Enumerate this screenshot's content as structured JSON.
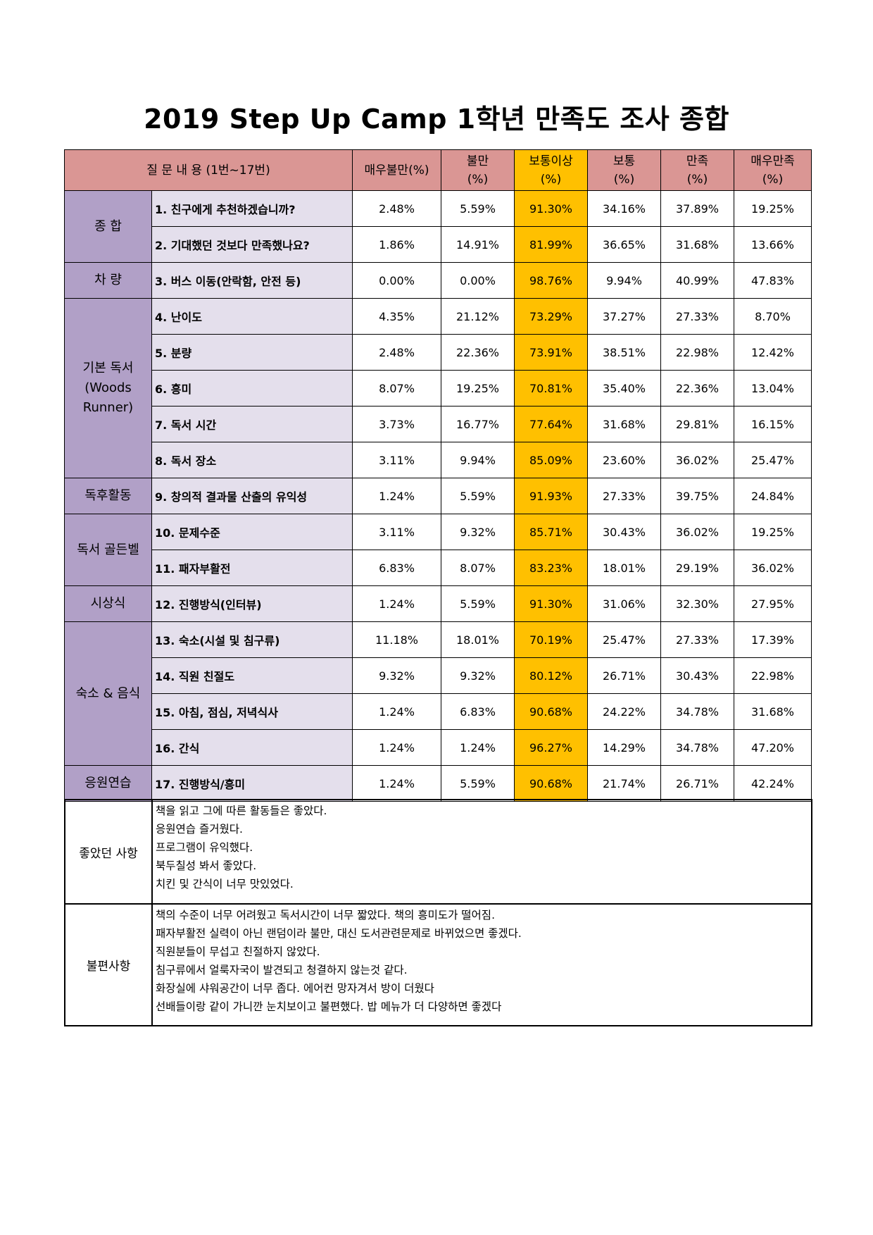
{
  "title": "2019 Step Up Camp 1학년 만족도 조사 종합",
  "header": {
    "question": "질 문 내 용 (1번~17번)",
    "cols": [
      {
        "line1": "매우불만(%)",
        "line2": ""
      },
      {
        "line1": "불만",
        "line2": "(%)"
      },
      {
        "line1": "보통이상",
        "line2": "(%)"
      },
      {
        "line1": "보통",
        "line2": "(%)"
      },
      {
        "line1": "만족",
        "line2": "(%)"
      },
      {
        "line1": "매우만족",
        "line2": "(%)"
      }
    ]
  },
  "categories": [
    "종 합",
    "차 량",
    "기본 독서\n(Woods\nRunner)",
    "독후활동",
    "독서 골든벨",
    "시상식",
    "숙소 & 음식",
    "응원연습"
  ],
  "rows": [
    {
      "q": "1. 친구에게 추천하겠습니까?",
      "v": [
        "2.48%",
        "5.59%",
        "91.30%",
        "34.16%",
        "37.89%",
        "19.25%"
      ]
    },
    {
      "q": "2. 기대했던 것보다 만족했나요?",
      "v": [
        "1.86%",
        "14.91%",
        "81.99%",
        "36.65%",
        "31.68%",
        "13.66%"
      ]
    },
    {
      "q": "3. 버스 이동(안락함, 안전 등)",
      "v": [
        "0.00%",
        "0.00%",
        "98.76%",
        "9.94%",
        "40.99%",
        "47.83%"
      ]
    },
    {
      "q": "4. 난이도",
      "v": [
        "4.35%",
        "21.12%",
        "73.29%",
        "37.27%",
        "27.33%",
        "8.70%"
      ]
    },
    {
      "q": "5. 분량",
      "v": [
        "2.48%",
        "22.36%",
        "73.91%",
        "38.51%",
        "22.98%",
        "12.42%"
      ]
    },
    {
      "q": "6. 흥미",
      "v": [
        "8.07%",
        "19.25%",
        "70.81%",
        "35.40%",
        "22.36%",
        "13.04%"
      ]
    },
    {
      "q": "7. 독서 시간",
      "v": [
        "3.73%",
        "16.77%",
        "77.64%",
        "31.68%",
        "29.81%",
        "16.15%"
      ]
    },
    {
      "q": "8. 독서 장소",
      "v": [
        "3.11%",
        "9.94%",
        "85.09%",
        "23.60%",
        "36.02%",
        "25.47%"
      ]
    },
    {
      "q": "9. 창의적 결과물 산출의 유익성",
      "v": [
        "1.24%",
        "5.59%",
        "91.93%",
        "27.33%",
        "39.75%",
        "24.84%"
      ]
    },
    {
      "q": "10. 문제수준",
      "v": [
        "3.11%",
        "9.32%",
        "85.71%",
        "30.43%",
        "36.02%",
        "19.25%"
      ]
    },
    {
      "q": "11. 패자부활전",
      "v": [
        "6.83%",
        "8.07%",
        "83.23%",
        "18.01%",
        "29.19%",
        "36.02%"
      ]
    },
    {
      "q": "12. 진행방식(인터뷰)",
      "v": [
        "1.24%",
        "5.59%",
        "91.30%",
        "31.06%",
        "32.30%",
        "27.95%"
      ]
    },
    {
      "q": "13. 숙소(시설 및 침구류)",
      "v": [
        "11.18%",
        "18.01%",
        "70.19%",
        "25.47%",
        "27.33%",
        "17.39%"
      ]
    },
    {
      "q": "14. 직원 친절도",
      "v": [
        "9.32%",
        "9.32%",
        "80.12%",
        "26.71%",
        "30.43%",
        "22.98%"
      ]
    },
    {
      "q": "15. 아침, 점심, 저녁식사",
      "v": [
        "1.24%",
        "6.83%",
        "90.68%",
        "24.22%",
        "34.78%",
        "31.68%"
      ]
    },
    {
      "q": "16. 간식",
      "v": [
        "1.24%",
        "1.24%",
        "96.27%",
        "14.29%",
        "34.78%",
        "47.20%"
      ]
    },
    {
      "q": "17. 진행방식/흥미",
      "v": [
        "1.24%",
        "5.59%",
        "90.68%",
        "21.74%",
        "26.71%",
        "42.24%"
      ]
    }
  ],
  "notes": {
    "good": {
      "label": "좋았던 사항",
      "lines": [
        "책을 읽고 그에 따른 활동들은 좋았다.",
        "응원연습 즐거웠다.",
        "프로그램이 유익했다.",
        "북두칠성 봐서 좋았다.",
        "치킨 및 간식이 너무 맛있었다."
      ]
    },
    "bad": {
      "label": "불편사항",
      "lines": [
        "책의 수준이 너무 어려웠고 독서시간이 너무 짧았다. 책의 흥미도가 떨어짐.",
        "패자부활전 실력이 아닌 랜덤이라 불만, 대신 도서관련문제로 바뀌었으면 좋겠다.",
        "직원분들이 무섭고 친절하지 않았다.",
        "침구류에서 얼룩자국이 발견되고 청결하지 않는것 같다.",
        "화장실에 샤워공간이 너무 좁다. 에어컨 망자겨서 방이 더웠다",
        "선배들이랑 같이 가니깐 눈치보이고 불편했다. 밥 메뉴가 더 다양하면 좋겠다"
      ]
    }
  }
}
